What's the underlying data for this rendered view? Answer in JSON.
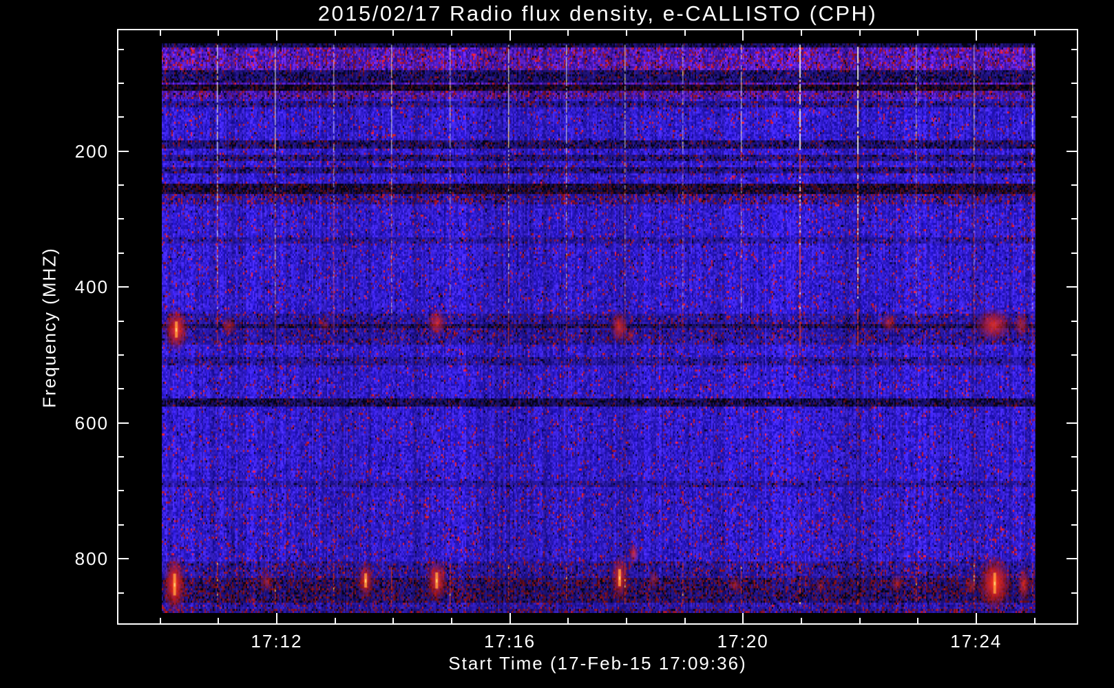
{
  "chart_data": {
    "type": "heatmap",
    "subtype": "radio-spectrogram",
    "title": "2015/02/17  Radio flux density, e-CALLISTO (CPH)",
    "x_axis": {
      "label": "Start Time (17-Feb-15 17:09:36)",
      "domain_minutes_after_1700": [
        9.26,
        25.75
      ],
      "minor_step_minutes": 1,
      "major_ticks": [
        {
          "minute": 12,
          "label": "17:12"
        },
        {
          "minute": 16,
          "label": "17:16"
        },
        {
          "minute": 20,
          "label": "17:20"
        },
        {
          "minute": 24,
          "label": "17:24"
        }
      ]
    },
    "y_axis": {
      "label": "Frequency (MHZ)",
      "domain_mhz": [
        20,
        897
      ],
      "direction": "increases-downward",
      "minor_step_mhz": 50,
      "major_ticks": [
        {
          "mhz": 200,
          "label": "200"
        },
        {
          "mhz": 400,
          "label": "400"
        },
        {
          "mhz": 600,
          "label": "600"
        },
        {
          "mhz": 800,
          "label": "800"
        }
      ]
    },
    "data_extent": {
      "t_minutes": [
        10.0,
        25.0
      ],
      "f_mhz": [
        40,
        880
      ]
    },
    "palette": {
      "background": "#000000",
      "axis": "#ffffff",
      "base_blue": "#2a1ee0",
      "rfi_red": "#cc2222",
      "spike_white": "#fffff0",
      "speckle_black": "#05051e"
    },
    "features": {
      "bands": [
        {
          "f": [
            40,
            44
          ],
          "d": 0.5,
          "r": 0.05,
          "k": 0.3
        },
        {
          "f": [
            44,
            78
          ],
          "d": 0.95,
          "r": 0.2,
          "k": 0.02,
          "p": 1
        },
        {
          "f": [
            78,
            96
          ],
          "d": 0.6,
          "r": 0.1,
          "k": 0.22
        },
        {
          "f": [
            96,
            101
          ],
          "d": 0.9,
          "r": 0.15,
          "k": 0.03,
          "p": 1
        },
        {
          "f": [
            101,
            110
          ],
          "d": 0.38,
          "r": 0.3,
          "k": 0.38
        },
        {
          "f": [
            110,
            122
          ],
          "d": 0.85,
          "r": 0.18,
          "k": 0.04,
          "p": 1
        },
        {
          "f": [
            124,
            133
          ],
          "d": 0.75,
          "r": 0.12,
          "k": 0.1
        },
        {
          "f": [
            183,
            193
          ],
          "d": 0.62,
          "r": 0.12,
          "k": 0.2
        },
        {
          "f": [
            203,
            212
          ],
          "d": 0.68,
          "r": 0.1,
          "k": 0.16
        },
        {
          "f": [
            221,
            230
          ],
          "d": 0.68,
          "r": 0.1,
          "k": 0.16
        },
        {
          "f": [
            247,
            262
          ],
          "d": 0.45,
          "r": 0.28,
          "k": 0.32
        },
        {
          "f": [
            262,
            276
          ],
          "d": 0.82,
          "r": 0.25,
          "k": 0.05
        },
        {
          "f": [
            325,
            334
          ],
          "d": 0.8,
          "r": 0.08,
          "k": 0.06
        },
        {
          "f": [
            437,
            484
          ],
          "d": 0.8,
          "r": 0.14,
          "k": 0.05
        },
        {
          "f": [
            452,
            459
          ],
          "d": 0.55,
          "r": 0.15,
          "k": 0.22
        },
        {
          "f": [
            503,
            514
          ],
          "d": 0.78,
          "r": 0.08,
          "k": 0.08
        },
        {
          "f": [
            562,
            576
          ],
          "d": 0.52,
          "r": 0.08,
          "k": 0.32
        },
        {
          "f": [
            685,
            694
          ],
          "d": 0.8,
          "r": 0.07,
          "k": 0.05
        },
        {
          "f": [
            700,
            800
          ],
          "d": 0.97,
          "r": 0.08,
          "k": 0.015
        },
        {
          "f": [
            803,
            828
          ],
          "d": 0.8,
          "r": 0.16,
          "k": 0.06
        },
        {
          "f": [
            828,
            864
          ],
          "d": 0.62,
          "r": 0.28,
          "k": 0.14
        },
        {
          "f": [
            864,
            874
          ],
          "d": 0.82,
          "r": 0.12,
          "k": 0.04
        },
        {
          "f": [
            874,
            880
          ],
          "d": 0.75,
          "r": 0.3,
          "k": 0.05
        }
      ],
      "vline_minutes": [
        11,
        12,
        13,
        14,
        15,
        16,
        17,
        18,
        19,
        20,
        21,
        22,
        23,
        24,
        25
      ],
      "blobs": [
        {
          "t": 10.25,
          "f": 462,
          "dt": 0.22,
          "df": 34,
          "a": 0.95,
          "core": 1
        },
        {
          "t": 11.15,
          "f": 457,
          "dt": 0.14,
          "df": 16,
          "a": 0.55
        },
        {
          "t": 12.8,
          "f": 456,
          "dt": 0.1,
          "df": 12,
          "a": 0.4
        },
        {
          "t": 14.72,
          "f": 452,
          "dt": 0.18,
          "df": 22,
          "a": 0.7
        },
        {
          "t": 17.85,
          "f": 458,
          "dt": 0.16,
          "df": 26,
          "a": 0.75
        },
        {
          "t": 18.05,
          "f": 470,
          "dt": 0.08,
          "df": 12,
          "a": 0.5
        },
        {
          "t": 22.48,
          "f": 452,
          "dt": 0.14,
          "df": 16,
          "a": 0.55
        },
        {
          "t": 24.28,
          "f": 455,
          "dt": 0.34,
          "df": 26,
          "a": 0.8
        },
        {
          "t": 24.75,
          "f": 455,
          "dt": 0.14,
          "df": 20,
          "a": 0.6
        },
        {
          "t": 10.22,
          "f": 838,
          "dt": 0.2,
          "df": 46,
          "a": 1.0,
          "core": 1
        },
        {
          "t": 11.8,
          "f": 834,
          "dt": 0.14,
          "df": 16,
          "a": 0.5
        },
        {
          "t": 13.5,
          "f": 832,
          "dt": 0.16,
          "df": 30,
          "a": 0.8,
          "core": 1
        },
        {
          "t": 14.72,
          "f": 832,
          "dt": 0.2,
          "df": 34,
          "a": 0.85,
          "core": 1
        },
        {
          "t": 17.86,
          "f": 828,
          "dt": 0.16,
          "df": 36,
          "a": 0.8,
          "core": 1
        },
        {
          "t": 18.1,
          "f": 792,
          "dt": 0.09,
          "df": 16,
          "a": 0.7
        },
        {
          "t": 18.45,
          "f": 830,
          "dt": 0.1,
          "df": 14,
          "a": 0.5
        },
        {
          "t": 19.84,
          "f": 838,
          "dt": 0.12,
          "df": 14,
          "a": 0.5
        },
        {
          "t": 21.3,
          "f": 840,
          "dt": 0.1,
          "df": 12,
          "a": 0.4
        },
        {
          "t": 22.62,
          "f": 836,
          "dt": 0.12,
          "df": 16,
          "a": 0.5
        },
        {
          "t": 23.9,
          "f": 840,
          "dt": 0.12,
          "df": 14,
          "a": 0.5
        },
        {
          "t": 24.3,
          "f": 836,
          "dt": 0.3,
          "df": 44,
          "a": 1.0,
          "core": 1
        },
        {
          "t": 24.8,
          "f": 838,
          "dt": 0.12,
          "df": 30,
          "a": 0.7
        }
      ]
    }
  }
}
